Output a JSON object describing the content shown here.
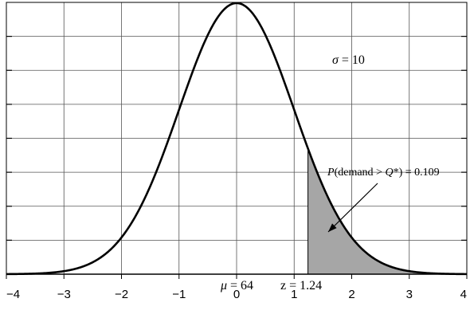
{
  "chart_data": {
    "type": "line",
    "title": "",
    "xlabel": "",
    "ylabel": "",
    "xlim": [
      -4,
      4
    ],
    "ylim": [
      0,
      0.4
    ],
    "grid": true,
    "x_ticks": [
      -4,
      -3,
      -2,
      -1,
      0,
      1,
      2,
      3,
      4
    ],
    "x_tick_labels": [
      "−4",
      "−3",
      "−2",
      "−1",
      "0",
      "1",
      "2",
      "3",
      "4"
    ],
    "y_tick_count": 8,
    "curve": {
      "distribution": "standard normal",
      "mean": 0,
      "sd": 1,
      "color": "#000000"
    },
    "shaded_region": {
      "from_x": 1.24,
      "to_x": 4,
      "fill": "#a6a6a6",
      "area": 0.109
    },
    "annotations": {
      "sigma_sym": "σ",
      "sigma_rest": " = 10",
      "prob_p": "P",
      "prob_open": "(demand > ",
      "prob_q": "Q",
      "prob_close": "*) = 0.109",
      "mu_sym": "μ",
      "mu_rest": " = 64",
      "z_label": "z = 1.24"
    }
  }
}
